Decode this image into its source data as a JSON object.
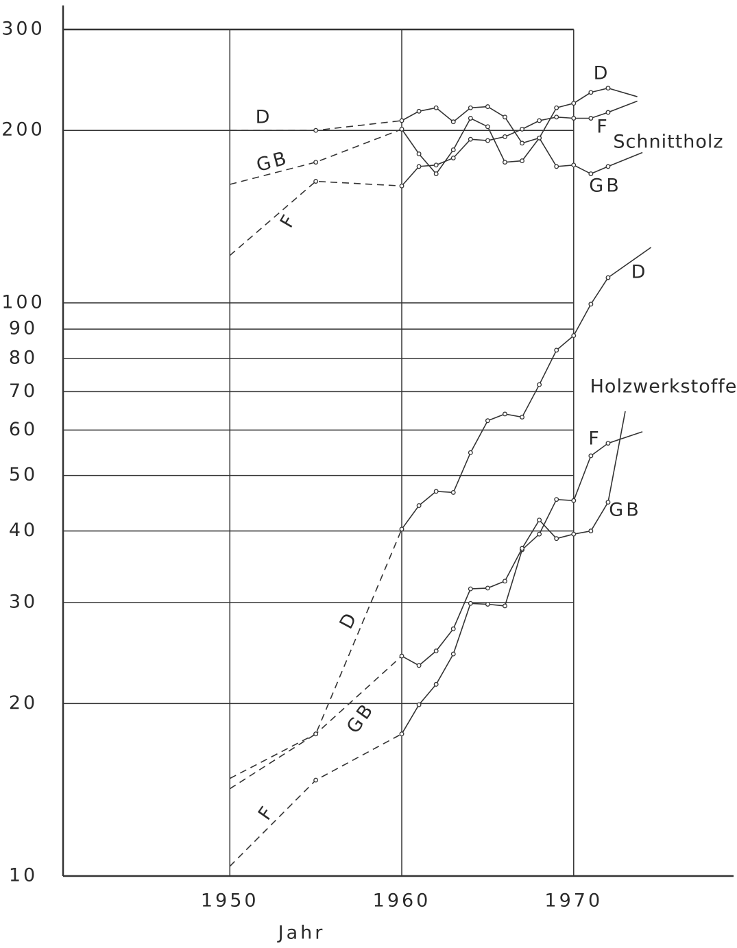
{
  "chart_data": {
    "type": "line",
    "xlabel": "Jahr",
    "log_y": true,
    "grid": true,
    "color": "#333333",
    "annotations": [
      "Schnittholz",
      "Holzwerkstoffe"
    ],
    "xlim": [
      1940.3,
      1979.3
    ],
    "xticks": [
      1950,
      1960,
      1970
    ],
    "ylim": [
      10,
      300
    ],
    "yticks": [
      10,
      20,
      30,
      40,
      50,
      60,
      70,
      80,
      90,
      100,
      200,
      300
    ],
    "series": [
      {
        "name": "D",
        "dashed_until": 1960,
        "x": [
          1950,
          1955,
          1960,
          1961,
          1962,
          1963,
          1964,
          1965,
          1966,
          1967,
          1968,
          1969,
          1970,
          1971,
          1972,
          1973.7
        ],
        "values": [
          200,
          200,
          208,
          216,
          219,
          207,
          219,
          220,
          211,
          190,
          194,
          219,
          223,
          233,
          237,
          229
        ]
      },
      {
        "name": "F",
        "dashed_until": 1960,
        "x": [
          1950,
          1955,
          1960,
          1961,
          1962,
          1963,
          1964,
          1965,
          1966,
          1967,
          1968,
          1969,
          1970,
          1971,
          1972,
          1973.7
        ],
        "values": [
          121,
          163,
          160,
          173,
          174,
          179,
          193,
          192,
          195,
          201,
          208,
          211,
          210,
          210,
          215,
          225
        ]
      },
      {
        "name": "GB",
        "dashed_until": 1960,
        "x": [
          1950,
          1955,
          1960,
          1961,
          1962,
          1963,
          1964,
          1965,
          1966,
          1967,
          1968,
          1969,
          1970,
          1971,
          1972,
          1974
        ],
        "values": [
          161,
          176,
          201,
          182,
          168,
          185,
          210,
          203,
          176,
          177,
          194,
          173,
          174,
          168,
          173,
          183
        ]
      },
      {
        "name": "D",
        "dashed_until": 1960,
        "x": [
          1950,
          1955,
          1960,
          1961,
          1962,
          1963,
          1964,
          1965,
          1966,
          1967,
          1968,
          1969,
          1970,
          1971,
          1972,
          1974.5
        ],
        "values": [
          14.2,
          17.7,
          40.3,
          44.3,
          46.9,
          46.7,
          54.8,
          62.3,
          64.0,
          63.2,
          72.0,
          82.7,
          87.7,
          99.5,
          110.7,
          125
        ]
      },
      {
        "name": "F",
        "dashed_until": 1960,
        "x": [
          1950,
          1955,
          1960,
          1961,
          1962,
          1963,
          1964,
          1965,
          1966,
          1967,
          1968,
          1969,
          1970,
          1971,
          1972,
          1974
        ],
        "values": [
          10.4,
          14.7,
          17.7,
          19.9,
          21.6,
          24.4,
          29.9,
          29.8,
          29.6,
          37.1,
          39.5,
          45.4,
          45.2,
          54.1,
          56.9,
          59.6
        ]
      },
      {
        "name": "GB",
        "dashed_until": 1960,
        "x": [
          1950,
          1955,
          1960,
          1961,
          1962,
          1963,
          1964,
          1965,
          1966,
          1967,
          1968,
          1969,
          1970,
          1971,
          1972,
          1973
        ],
        "values": [
          14.8,
          17.7,
          24.2,
          23.3,
          24.7,
          27.0,
          31.7,
          31.8,
          32.7,
          37.3,
          41.8,
          38.8,
          39.5,
          40.0,
          44.9,
          64.7
        ]
      }
    ]
  }
}
